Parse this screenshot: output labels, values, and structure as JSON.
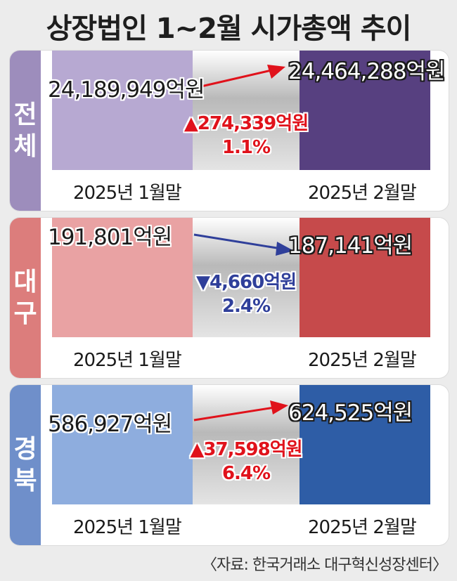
{
  "title": "상장법인 1~2월 시가총액 추이",
  "source": "〈자료: 한국거래소 대구혁신성장센터〉",
  "months": {
    "start": "2025년 1월말",
    "end": "2025년 2월말"
  },
  "colors": {
    "total": {
      "side": "#9d8dbc",
      "start": "#b7a9d2",
      "end": "#574080",
      "arrow": "#e0121b"
    },
    "daegu": {
      "side": "#dc7d7c",
      "start": "#e9a2a3",
      "end": "#c64a4b",
      "arrow": "#2f3f9a"
    },
    "gyeongbuk": {
      "side": "#6f8fca",
      "start": "#8eadde",
      "end": "#2e5da6",
      "arrow": "#e0121b"
    }
  },
  "panels": [
    {
      "key": "total",
      "label_chars": [
        "전",
        "체"
      ],
      "start_value": "24,189,949억원",
      "end_value": "24,464,288억원",
      "change_amount": "▲274,339억원",
      "change_pct": "1.1%",
      "change_color": "#e0121b"
    },
    {
      "key": "daegu",
      "label_chars": [
        "대",
        "구"
      ],
      "start_value": "191,801억원",
      "end_value": "187,141억원",
      "change_amount": "▼4,660억원",
      "change_pct": "2.4%",
      "change_color": "#2f3f9a"
    },
    {
      "key": "gyeongbuk",
      "label_chars": [
        "경",
        "북"
      ],
      "start_value": "586,927억원",
      "end_value": "624,525억원",
      "change_amount": "▲37,598억원",
      "change_pct": "6.4%",
      "change_color": "#e0121b"
    }
  ],
  "chart_data": [
    {
      "type": "bar",
      "region": "전체",
      "categories": [
        "2025년 1월말",
        "2025년 2월말"
      ],
      "values": [
        24189949,
        24464288
      ],
      "unit": "억원",
      "change": 274339,
      "change_pct": 1.1
    },
    {
      "type": "bar",
      "region": "대구",
      "categories": [
        "2025년 1월말",
        "2025년 2월말"
      ],
      "values": [
        191801,
        187141
      ],
      "unit": "억원",
      "change": -4660,
      "change_pct": -2.4
    },
    {
      "type": "bar",
      "region": "경북",
      "categories": [
        "2025년 1월말",
        "2025년 2월말"
      ],
      "values": [
        586927,
        624525
      ],
      "unit": "억원",
      "change": 37598,
      "change_pct": 6.4
    }
  ]
}
